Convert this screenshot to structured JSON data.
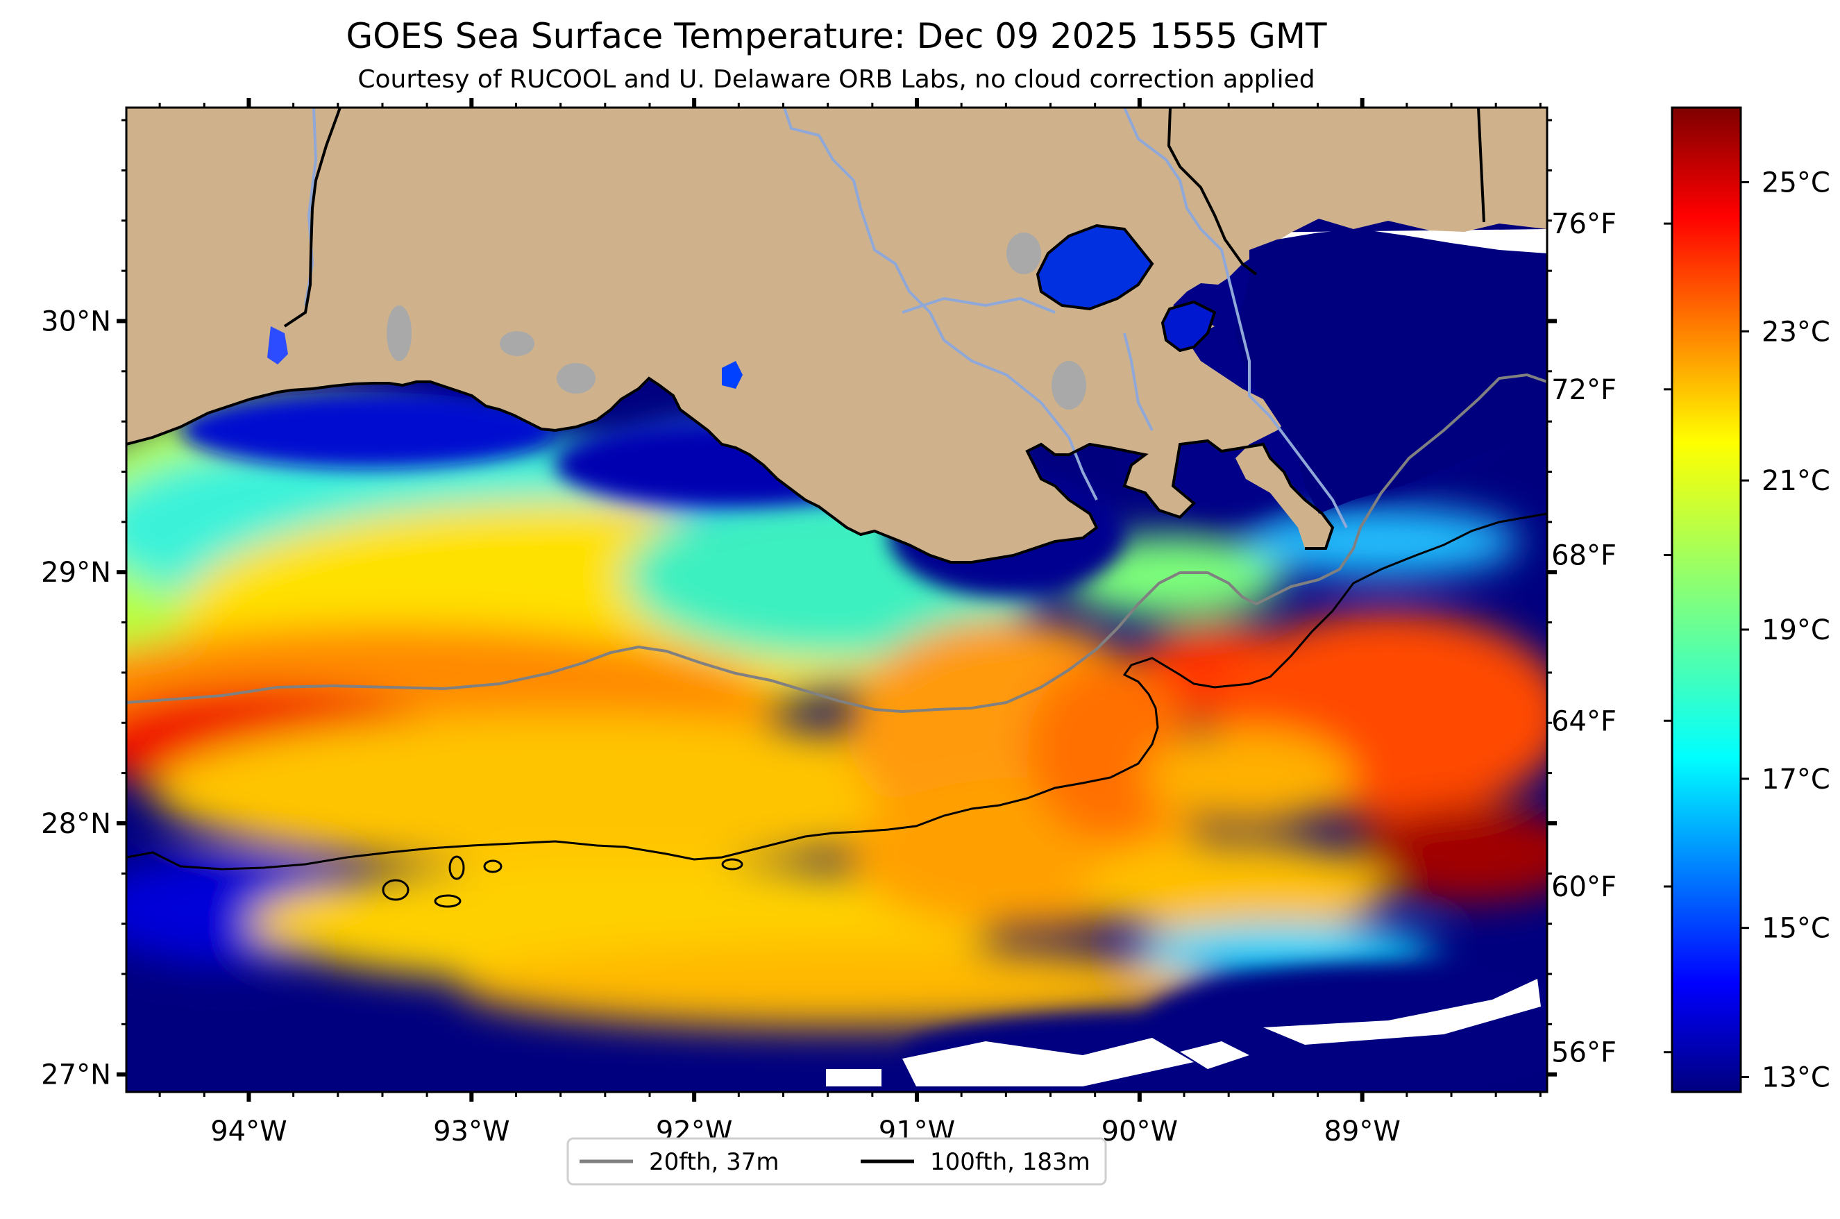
{
  "title": "GOES Sea Surface Temperature: Dec 09 2025 1555 GMT",
  "subtitle": "Courtesy of RUCOOL and U. Delaware ORB Labs, no cloud correction applied",
  "map": {
    "lon_range": [
      -94.55,
      -88.17
    ],
    "lat_range": [
      26.93,
      30.85
    ],
    "lon_ticks": [
      {
        "value": -94,
        "label": "94°W"
      },
      {
        "value": -93,
        "label": "93°W"
      },
      {
        "value": -92,
        "label": "92°W"
      },
      {
        "value": -91,
        "label": "91°W"
      },
      {
        "value": -90,
        "label": "90°W"
      },
      {
        "value": -89,
        "label": "89°W"
      }
    ],
    "lat_ticks": [
      {
        "value": 27,
        "label": "27°N"
      },
      {
        "value": 28,
        "label": "28°N"
      },
      {
        "value": 29,
        "label": "29°N"
      },
      {
        "value": 30,
        "label": "30°N"
      }
    ],
    "colors": {
      "land": "#cfb28b",
      "cloud": "#ffffff",
      "lake": "#a9a9a9",
      "river": "#8fa8d8",
      "isobath_20": "#808080",
      "isobath_100": "#000000"
    }
  },
  "legend": {
    "items": [
      {
        "label": "20fth, 37m",
        "color": "#808080"
      },
      {
        "label": "100fth, 183m",
        "color": "#000000"
      }
    ]
  },
  "colorbar": {
    "range_c": [
      12.8,
      26.0
    ],
    "celsius_ticks": [
      {
        "value": 13,
        "label": "13°C"
      },
      {
        "value": 15,
        "label": "15°C"
      },
      {
        "value": 17,
        "label": "17°C"
      },
      {
        "value": 19,
        "label": "19°C"
      },
      {
        "value": 21,
        "label": "21°C"
      },
      {
        "value": 23,
        "label": "23°C"
      },
      {
        "value": 25,
        "label": "25°C"
      }
    ],
    "fahrenheit_ticks": [
      {
        "value": 56,
        "label": "56°F"
      },
      {
        "value": 60,
        "label": "60°F"
      },
      {
        "value": 64,
        "label": "64°F"
      },
      {
        "value": 68,
        "label": "68°F"
      },
      {
        "value": 72,
        "label": "72°F"
      },
      {
        "value": 76,
        "label": "76°F"
      }
    ],
    "palette": [
      "#00007f",
      "#0000ff",
      "#007fff",
      "#00ffff",
      "#7fff7f",
      "#ffff00",
      "#ff7f00",
      "#ff0000",
      "#7f0000"
    ]
  }
}
